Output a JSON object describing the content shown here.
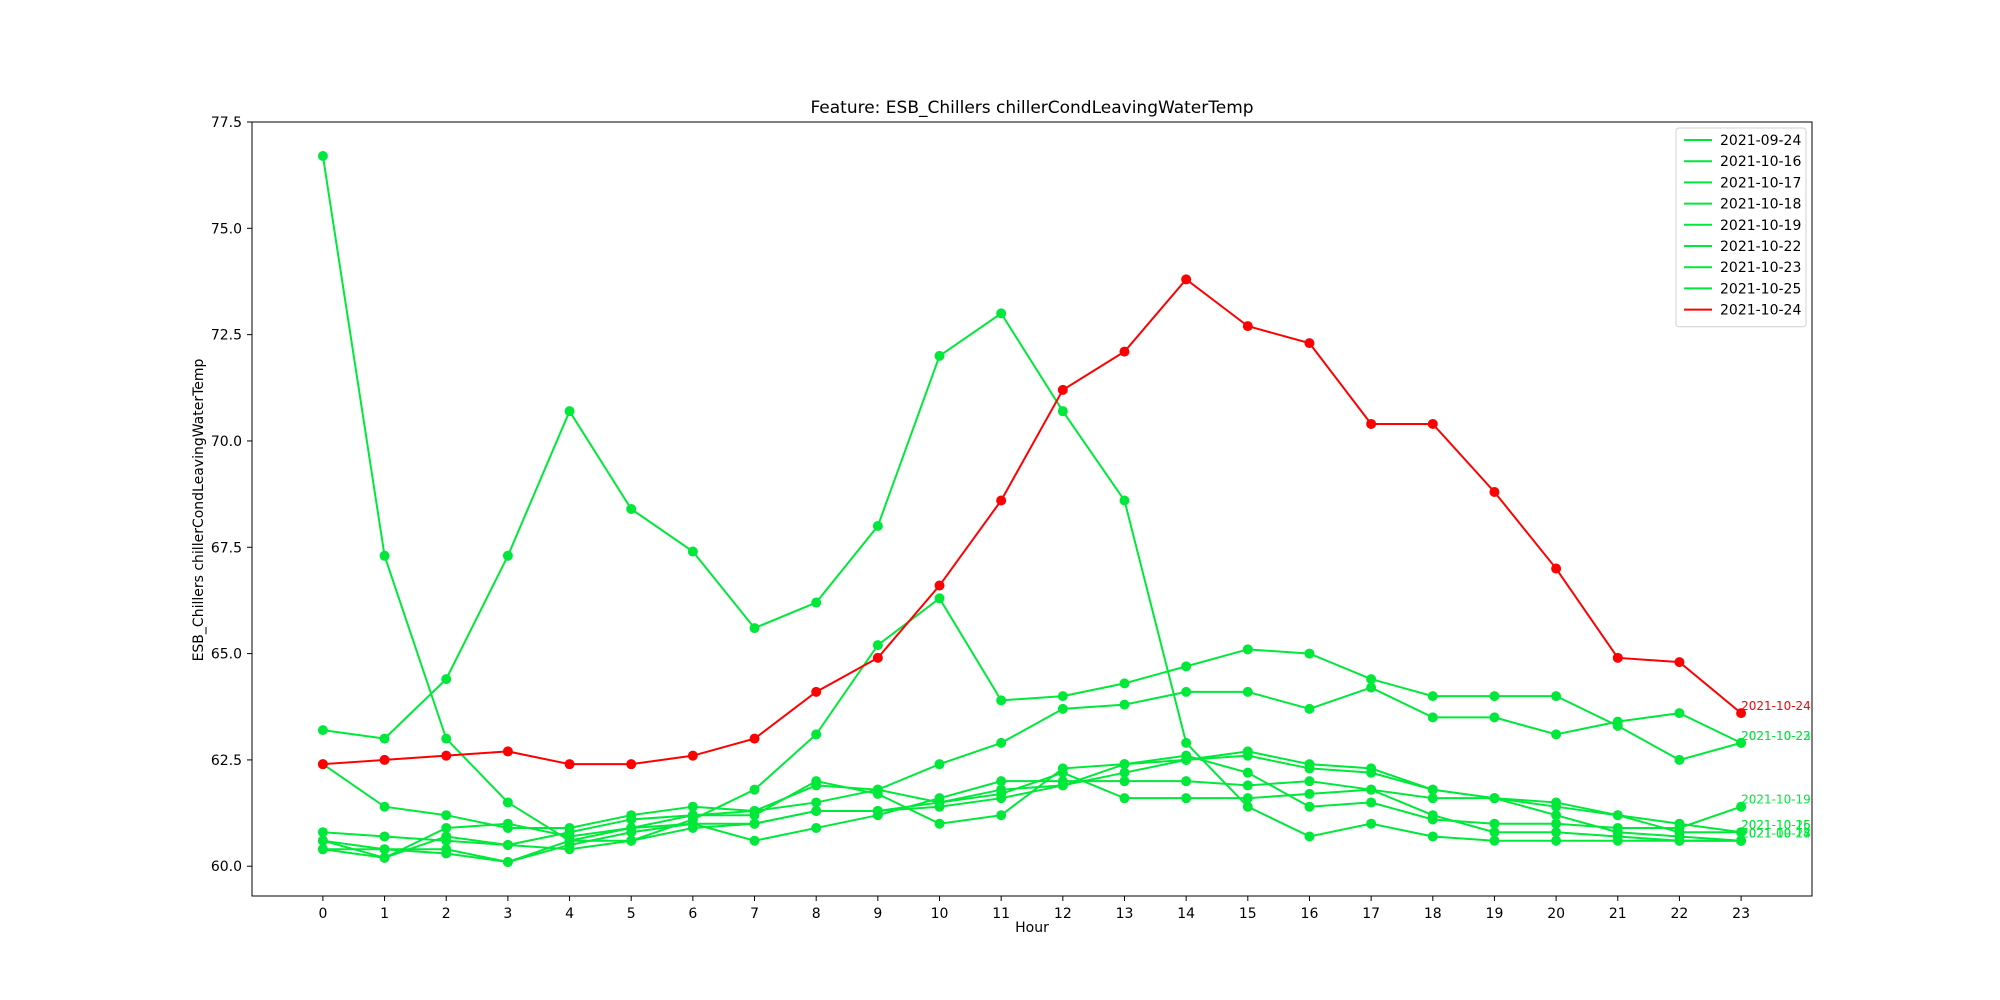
{
  "chart_data": {
    "type": "line",
    "title": "Feature: ESB_Chillers chillerCondLeavingWaterTemp",
    "xlabel": "Hour",
    "ylabel": "ESB_Chillers chillerCondLeavingWaterTemp",
    "x": [
      0,
      1,
      2,
      3,
      4,
      5,
      6,
      7,
      8,
      9,
      10,
      11,
      12,
      13,
      14,
      15,
      16,
      17,
      18,
      19,
      20,
      21,
      22,
      23
    ],
    "x_tick_labels": [
      "0",
      "1",
      "2",
      "3",
      "4",
      "5",
      "6",
      "7",
      "8",
      "9",
      "10",
      "11",
      "12",
      "13",
      "14",
      "15",
      "16",
      "17",
      "18",
      "19",
      "20",
      "21",
      "22",
      "23"
    ],
    "xlim": [
      -1.15,
      24.15
    ],
    "ylim": [
      59.3,
      77.5
    ],
    "y_ticks": [
      60.0,
      62.5,
      65.0,
      67.5,
      70.0,
      72.5,
      75.0,
      77.5
    ],
    "y_tick_labels": [
      "60.0",
      "62.5",
      "65.0",
      "67.5",
      "70.0",
      "72.5",
      "75.0",
      "77.5"
    ],
    "grid": false,
    "legend_position": "top-right",
    "series": [
      {
        "name": "2021-09-24",
        "color": "#00e83a",
        "values": [
          63.2,
          63.0,
          64.4,
          67.3,
          70.7,
          68.4,
          67.4,
          65.6,
          66.2,
          68.0,
          72.0,
          73.0,
          70.7,
          68.6,
          62.9,
          61.4,
          60.7,
          61.0,
          60.7,
          60.6,
          60.6,
          60.6,
          60.6,
          60.6
        ]
      },
      {
        "name": "2021-10-16",
        "color": "#00e83a",
        "values": [
          60.6,
          60.4,
          60.3,
          60.1,
          60.6,
          60.9,
          61.0,
          61.0,
          61.3,
          61.3,
          61.4,
          61.6,
          61.9,
          62.2,
          62.5,
          62.6,
          62.3,
          62.2,
          61.8,
          61.6,
          61.4,
          61.2,
          61.0,
          60.8
        ]
      },
      {
        "name": "2021-10-17",
        "color": "#00e83a",
        "values": [
          60.4,
          60.4,
          60.4,
          60.1,
          60.5,
          60.8,
          61.0,
          60.6,
          60.9,
          61.2,
          61.6,
          62.0,
          62.0,
          62.0,
          62.0,
          61.9,
          62.0,
          61.8,
          61.6,
          61.6,
          61.2,
          60.8,
          60.7,
          60.6
        ]
      },
      {
        "name": "2021-10-18",
        "color": "#00e83a",
        "values": [
          60.4,
          60.2,
          60.7,
          60.5,
          60.8,
          61.1,
          61.2,
          61.3,
          61.9,
          61.8,
          61.5,
          61.7,
          62.2,
          61.6,
          61.6,
          61.6,
          61.7,
          61.8,
          61.2,
          60.8,
          60.8,
          60.7,
          60.6,
          60.6
        ]
      },
      {
        "name": "2021-10-19",
        "color": "#00e83a",
        "values": [
          60.8,
          60.7,
          60.6,
          60.5,
          60.4,
          60.6,
          60.9,
          61.0,
          61.3,
          61.3,
          61.5,
          61.8,
          61.9,
          62.4,
          62.6,
          62.2,
          61.4,
          61.5,
          61.1,
          61.0,
          61.0,
          60.9,
          60.9,
          61.4
        ]
      },
      {
        "name": "2021-10-22",
        "color": "#00e83a",
        "values": [
          62.4,
          61.4,
          61.2,
          60.9,
          60.9,
          61.2,
          61.4,
          61.3,
          61.5,
          61.8,
          62.4,
          62.9,
          63.7,
          63.8,
          64.1,
          64.1,
          63.7,
          64.2,
          63.5,
          63.5,
          63.1,
          63.4,
          63.6,
          62.9
        ]
      },
      {
        "name": "2021-10-23",
        "color": "#00e83a",
        "values": [
          76.7,
          67.3,
          63.0,
          61.5,
          60.6,
          60.6,
          61.1,
          61.8,
          63.1,
          65.2,
          66.3,
          63.9,
          64.0,
          64.3,
          64.7,
          65.1,
          65.0,
          64.4,
          64.0,
          64.0,
          64.0,
          63.3,
          62.5,
          62.9
        ]
      },
      {
        "name": "2021-10-25",
        "color": "#00e83a",
        "values": [
          60.6,
          60.2,
          60.9,
          61.0,
          60.7,
          60.9,
          61.2,
          61.2,
          62.0,
          61.7,
          61.0,
          61.2,
          62.3,
          62.4,
          62.5,
          62.7,
          62.4,
          62.3,
          61.8,
          61.6,
          61.5,
          61.2,
          60.8,
          60.8
        ]
      },
      {
        "name": "2021-10-24",
        "color": "#ff0000",
        "values": [
          62.4,
          62.5,
          62.6,
          62.7,
          62.4,
          62.4,
          62.6,
          63.0,
          64.1,
          64.9,
          66.6,
          68.6,
          71.2,
          72.1,
          73.8,
          72.7,
          72.3,
          70.4,
          70.4,
          68.8,
          67.0,
          64.9,
          64.8,
          63.6
        ]
      }
    ]
  }
}
